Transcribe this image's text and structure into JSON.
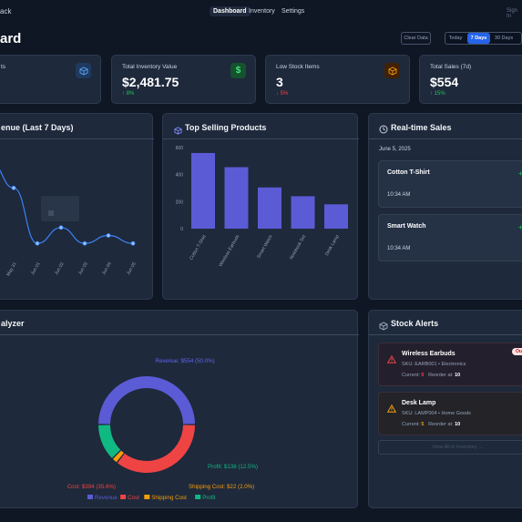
{
  "nav": {
    "brand": "ack",
    "tabs": [
      {
        "label": "Dashboard",
        "active": true
      },
      {
        "label": "Inventory",
        "active": false
      },
      {
        "label": "Settings",
        "active": false
      }
    ],
    "signin": "Sign In"
  },
  "header": {
    "title": "ard",
    "clear_data": "Clear Data",
    "ranges": [
      "Today",
      "7 Days",
      "30 Days"
    ],
    "active_range": "7 Days"
  },
  "stats": [
    {
      "label": "ts",
      "value": "",
      "trend": "",
      "icon": "cube-icon"
    },
    {
      "label": "Total Inventory Value",
      "value": "$2,481.75",
      "trend": "↑ 8%",
      "direction": "up",
      "icon": "dollar-icon"
    },
    {
      "label": "Low Stock Items",
      "value": "3",
      "trend": "↓ 5%",
      "direction": "down",
      "icon": "box-icon"
    },
    {
      "label": "Total Sales (7d)",
      "value": "$554",
      "trend": "↑ 15%",
      "direction": "up",
      "icon": "cube-icon"
    }
  ],
  "revenue_panel": {
    "title": "enue (Last 7 Days)"
  },
  "top_products_panel": {
    "title": "Top Selling Products"
  },
  "realtime_panel": {
    "title": "Real-time Sales",
    "date": "June 5, 2025",
    "sales": [
      {
        "product": "Cotton T-Shirt",
        "time": "10:34 AM"
      },
      {
        "product": "Smart Watch",
        "time": "10:34 AM"
      }
    ]
  },
  "analyzer_panel": {
    "title": "alyzer"
  },
  "stock_alerts": {
    "title": "Stock Alerts",
    "items": [
      {
        "name": "Wireless Earbuds",
        "sku": "SKU: EARB001 • Electronics",
        "current_label": "Current:",
        "current": "0",
        "reorder_label": "Reorder at:",
        "reorder": "10",
        "badge": "Ou",
        "current_color": "#ef4444"
      },
      {
        "name": "Desk Lamp",
        "sku": "SKU: LAMP004 • Home Goods",
        "current_label": "Current:",
        "current": "5",
        "reorder_label": "Reorder at:",
        "reorder": "10",
        "badge": "L",
        "current_color": "#f59e0b"
      }
    ],
    "view_all": "View All in Inventory →"
  },
  "chart_data": [
    {
      "type": "line",
      "title": "enue (Last 7 Days)",
      "x": [
        "May 31",
        "Jun 01",
        "Jun 02",
        "Jun 03",
        "Jun 04",
        "Jun 05"
      ],
      "values": [
        115,
        10,
        40,
        10,
        25,
        10
      ],
      "leading_value": 160,
      "color": "#3b82f6"
    },
    {
      "type": "bar",
      "title": "Top Selling Products",
      "categories": [
        "Cotton T-Shirt",
        "Wireless Earbuds",
        "Smart Watch",
        "Notebook Set",
        "Desk Lamp"
      ],
      "values": [
        560,
        455,
        305,
        240,
        180
      ],
      "ylim": [
        0,
        600
      ],
      "yticks": [
        0,
        200,
        400,
        600
      ],
      "color": "#5b5bd6"
    },
    {
      "type": "pie",
      "title": "alyzer",
      "slices": [
        {
          "name": "Revenue",
          "value": 554,
          "label": "Revenue: $554 (50.0%)",
          "color": "#5b5bd6"
        },
        {
          "name": "Cost",
          "value": 394,
          "label": "Cost: $394 (35.6%)",
          "color": "#ef4444"
        },
        {
          "name": "Shipping Cost",
          "value": 22,
          "label": "Shipping Cost: $22 (2.0%)",
          "color": "#f59e0b"
        },
        {
          "name": "Profit",
          "value": 138,
          "label": "Profit: $138 (12.5%)",
          "color": "#10b981"
        }
      ],
      "legend": [
        "Revenue",
        "Cost",
        "Shipping Cost",
        "Profit"
      ]
    }
  ]
}
